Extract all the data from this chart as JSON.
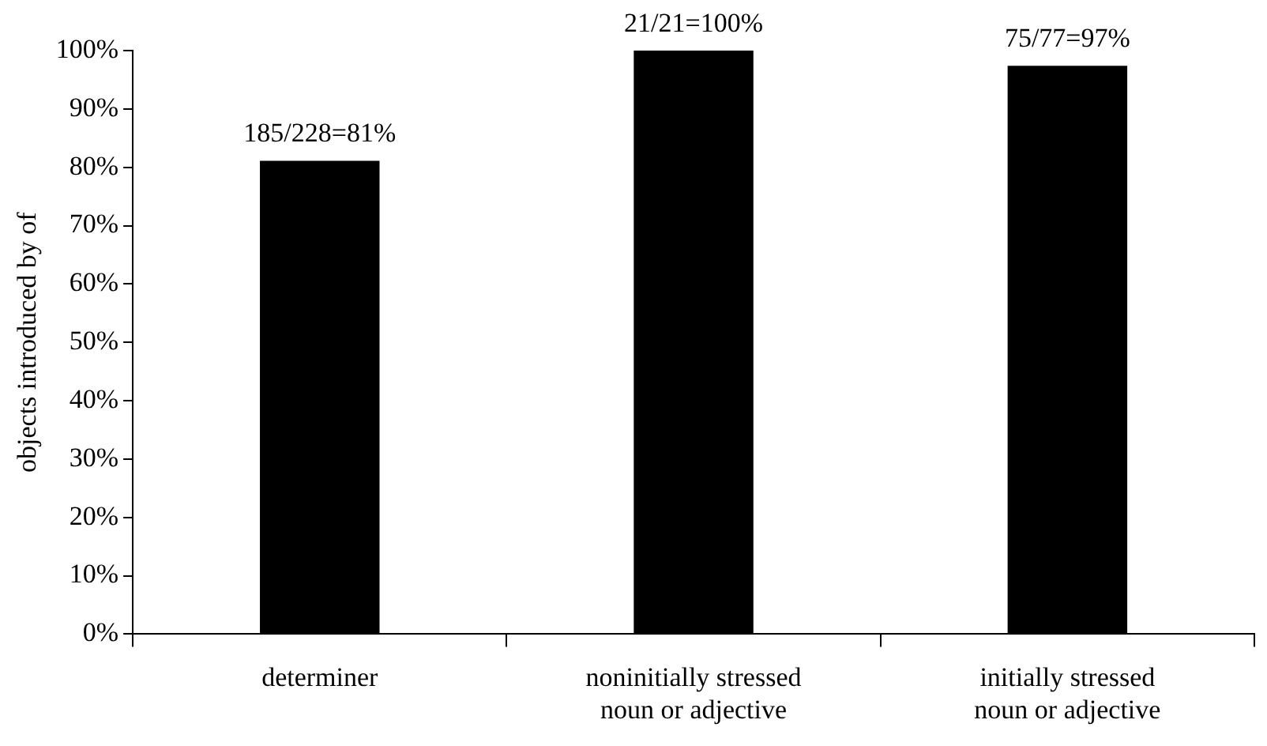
{
  "chart_data": {
    "type": "bar",
    "ylabel": "objects introduced by of",
    "categories": [
      "determiner",
      "noninitially stressed noun or adjective",
      "initially stressed noun or adjective"
    ],
    "values": [
      81.1,
      100,
      97.4
    ],
    "color": "#000000",
    "value_labels": [
      "185/228=81%",
      "21/21=100%",
      "75/77=97%"
    ],
    "ylim": [
      0,
      100
    ],
    "yticks": [
      {
        "value": 0,
        "label": "0%"
      },
      {
        "value": 10,
        "label": "10%"
      },
      {
        "value": 20,
        "label": "20%"
      },
      {
        "value": 30,
        "label": "30%"
      },
      {
        "value": 40,
        "label": "40%"
      },
      {
        "value": 50,
        "label": "50%"
      },
      {
        "value": 60,
        "label": "60%"
      },
      {
        "value": 70,
        "label": "70%"
      },
      {
        "value": 80,
        "label": "80%"
      },
      {
        "value": 90,
        "label": "90%"
      },
      {
        "value": 100,
        "label": "100%"
      }
    ],
    "grid": false,
    "legend": false
  }
}
